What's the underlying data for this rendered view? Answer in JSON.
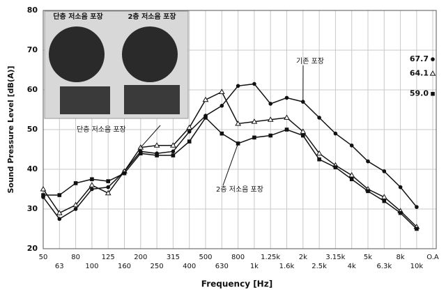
{
  "chart_data": {
    "type": "line",
    "y_label": "Sound Pressure Level [dB(A)]",
    "x_label": "Frequency [Hz]",
    "categories": [
      "50",
      "63",
      "80",
      "100",
      "125",
      "160",
      "200",
      "250",
      "315",
      "400",
      "500",
      "630",
      "800",
      "1k",
      "1.25k",
      "1.6k",
      "2k",
      "2.5k",
      "3.15k",
      "4k",
      "5k",
      "6.3k",
      "8k",
      "10k",
      "O.A"
    ],
    "series": [
      {
        "name": "기존 포장",
        "color": "#111111",
        "marker": "circle",
        "values": [
          33,
          27.5,
          30,
          35,
          35.5,
          39.5,
          44.5,
          44,
          44.5,
          49.5,
          53.5,
          56,
          61,
          61.5,
          56.5,
          58,
          57,
          53,
          49,
          46,
          42,
          39.5,
          35.5,
          30.5,
          67.7
        ]
      },
      {
        "name": "단층 저소음 포장",
        "color": "#111111",
        "marker": "triangle",
        "values": [
          35,
          29,
          31,
          36,
          34,
          39.5,
          45.5,
          46,
          46,
          50.5,
          57.5,
          59.5,
          51.5,
          52,
          52.5,
          53,
          49.5,
          44,
          41,
          38.5,
          35,
          33,
          29.5,
          25.5,
          64.1
        ]
      },
      {
        "name": "2층 저소음 포장",
        "color": "#111111",
        "marker": "square",
        "values": [
          33.5,
          33.5,
          36.5,
          37.5,
          37,
          39,
          44,
          43.5,
          43.5,
          47,
          53,
          49,
          46.5,
          48,
          48.5,
          50,
          48.5,
          42.5,
          40.5,
          37.5,
          34.5,
          32,
          29,
          25,
          59.0
        ],
        "value_labels": [
          null,
          null,
          null,
          null,
          null,
          null,
          null,
          null,
          null,
          null,
          null,
          null,
          null,
          null,
          null,
          null,
          null,
          null,
          null,
          null,
          null,
          null,
          null,
          null,
          "59.0"
        ]
      }
    ],
    "ylim": [
      20,
      80
    ],
    "yticks": [
      20,
      30,
      40,
      50,
      60,
      70,
      80
    ],
    "grid": true,
    "inset": {
      "labels": [
        "단층 저소음 포장",
        "2층 저소음 포장"
      ]
    }
  }
}
